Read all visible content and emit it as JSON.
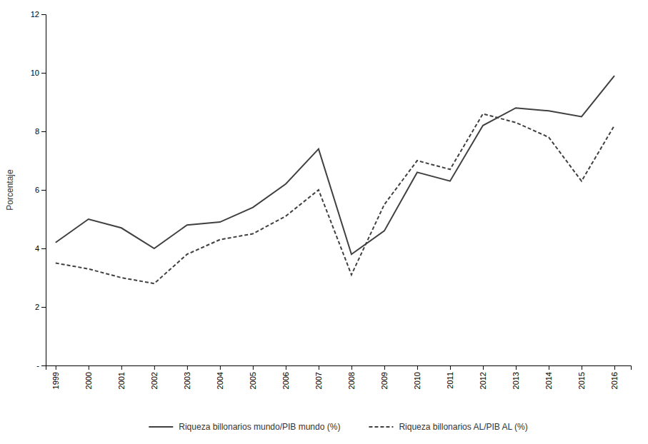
{
  "chart_data": {
    "type": "line",
    "x": [
      1999,
      2000,
      2001,
      2002,
      2003,
      2004,
      2005,
      2006,
      2007,
      2008,
      2009,
      2010,
      2011,
      2012,
      2013,
      2014,
      2015,
      2016
    ],
    "series": [
      {
        "name": "Riqueza billonarios mundo/PIB mundo (%)",
        "color": "#404040",
        "line_style": "solid",
        "values": [
          4.2,
          5.0,
          4.7,
          4.0,
          4.8,
          4.9,
          5.4,
          6.2,
          7.4,
          3.8,
          4.6,
          6.6,
          6.3,
          8.2,
          8.8,
          8.7,
          8.5,
          9.9
        ]
      },
      {
        "name": "Riqueza billonarios AL/PIB AL (%)",
        "color": "#404040",
        "line_style": "dashed",
        "values": [
          3.5,
          3.3,
          3.0,
          2.8,
          3.8,
          4.3,
          4.5,
          5.1,
          6.0,
          3.1,
          5.5,
          7.0,
          6.7,
          8.6,
          8.3,
          7.8,
          6.3,
          8.2
        ]
      }
    ],
    "ylabel": "Porcentaje",
    "xlim": [
      1998.7,
      2016.5
    ],
    "xticks": [
      1999,
      2000,
      2001,
      2002,
      2003,
      2004,
      2005,
      2006,
      2007,
      2008,
      2009,
      2010,
      2011,
      2012,
      2013,
      2014,
      2015,
      2016
    ],
    "ylim": [
      0,
      12
    ],
    "yticks": [
      {
        "value": 0,
        "label": "-"
      },
      2,
      4,
      6,
      8,
      10,
      12
    ],
    "grid": false,
    "legend": "bottom"
  }
}
